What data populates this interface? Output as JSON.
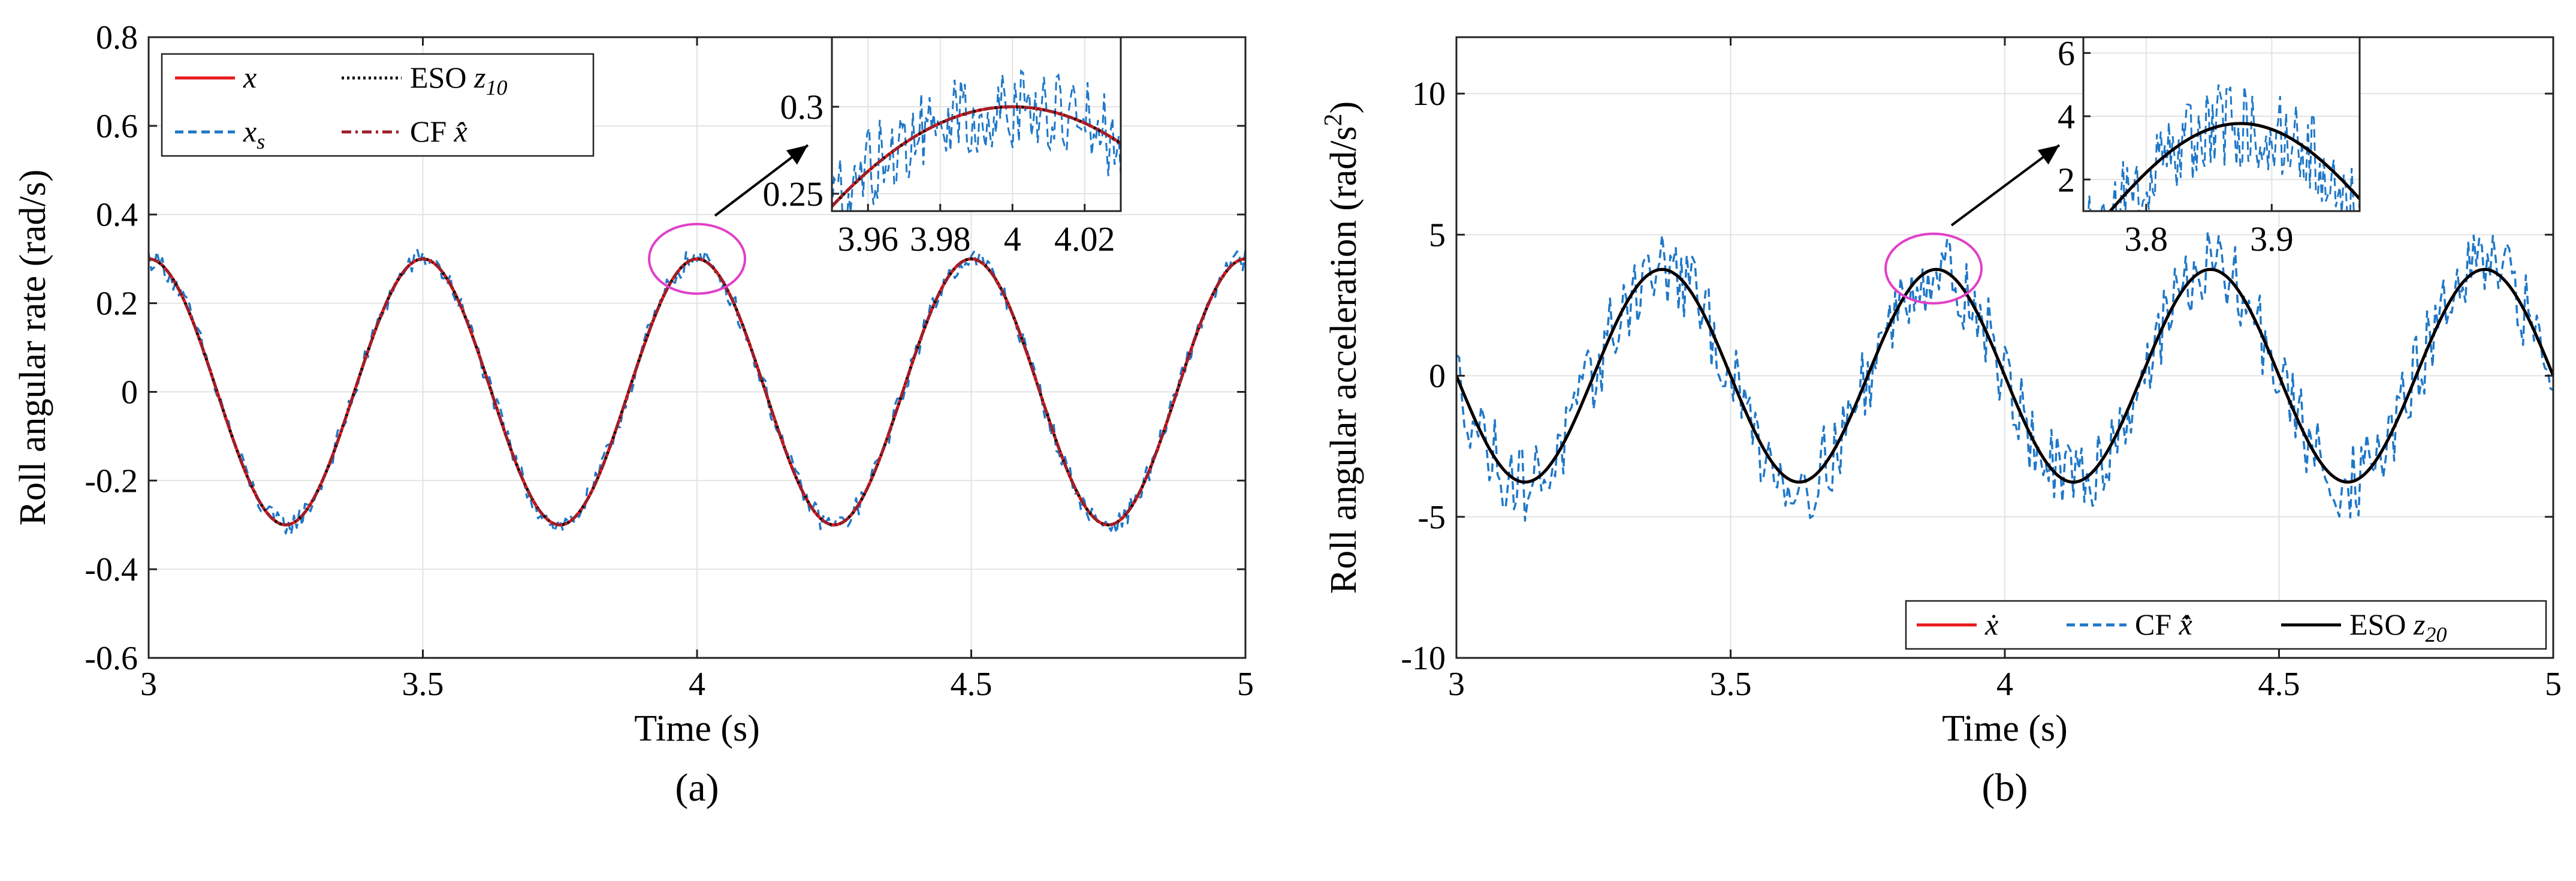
{
  "chart_data": [
    {
      "type": "line",
      "panel_label": "(a)",
      "xlabel": "Time (s)",
      "ylabel": "Roll angular rate (rad/s)",
      "xlim": [
        3,
        5
      ],
      "ylim": [
        -0.6,
        0.8
      ],
      "xticks": [
        3,
        3.5,
        4,
        4.5,
        5
      ],
      "xtick_labels": [
        "3",
        "3.5",
        "4",
        "4.5",
        "5"
      ],
      "yticks": [
        -0.6,
        -0.4,
        -0.2,
        0,
        0.2,
        0.4,
        0.6,
        0.8
      ],
      "ytick_labels": [
        "-0.6",
        "-0.4",
        "-0.2",
        "0",
        "0.2",
        "0.4",
        "0.6",
        "0.8"
      ],
      "grid": true,
      "legend_location": "top-left",
      "signal": {
        "amplitude": 0.3,
        "frequency_hz": 2,
        "peak_time": 3.5,
        "samples": 401
      },
      "series": [
        {
          "name": "x",
          "label_main": "x",
          "label_sub": "",
          "label_prefix": "",
          "color": "#e8191c",
          "style": "solid",
          "noise": 0
        },
        {
          "name": "xs",
          "label_main": "x",
          "label_sub": "s",
          "label_prefix": "",
          "color": "#1f78c8",
          "style": "dashed",
          "noise": 0.025
        },
        {
          "name": "ESO z10",
          "label_main": "z",
          "label_sub": "10",
          "label_prefix": "ESO",
          "color": "#111111",
          "style": "dotted",
          "noise": 0
        },
        {
          "name": "CF x-hat",
          "label_main": "x̂",
          "label_sub": "",
          "label_prefix": "CF",
          "color": "#9e1f2a",
          "style": "dashdot",
          "noise": 0
        }
      ],
      "highlight": {
        "x": 4.0,
        "y": 0.3,
        "color": "#e040c8"
      },
      "inset": {
        "xlim": [
          3.95,
          4.03
        ],
        "ylim": [
          0.24,
          0.34
        ],
        "xticks": [
          3.96,
          3.98,
          4,
          4.02
        ],
        "xtick_labels": [
          "3.96",
          "3.98",
          "4",
          "4.02"
        ],
        "yticks": [
          0.25,
          0.3
        ],
        "ytick_labels": [
          "0.25",
          "0.3"
        ]
      }
    },
    {
      "type": "line",
      "panel_label": "(b)",
      "xlabel": "Time (s)",
      "ylabel": "Roll angular acceleration (rad/s",
      "ylabel_sup": "2",
      "ylabel_end": ")",
      "xlim": [
        3,
        5
      ],
      "ylim": [
        -10,
        12
      ],
      "xticks": [
        3,
        3.5,
        4,
        4.5,
        5
      ],
      "xtick_labels": [
        "3",
        "3.5",
        "4",
        "4.5",
        "5"
      ],
      "yticks": [
        -10,
        -5,
        0,
        5,
        10
      ],
      "ytick_labels": [
        "-10",
        "-5",
        "0",
        "5",
        "10"
      ],
      "grid": true,
      "legend_location": "bottom-right",
      "signal": {
        "amplitude": 3.77,
        "frequency_hz": 2,
        "peak_time": 3.375,
        "samples": 401
      },
      "series": [
        {
          "name": "x-dot",
          "label_main": "ẋ",
          "label_sub": "",
          "label_prefix": "",
          "color": "#e8191c",
          "style": "solid",
          "noise": 0
        },
        {
          "name": "CF x-hat-dot",
          "label_main": "x̂̇",
          "label_sub": "",
          "label_prefix": "CF",
          "color": "#1f78c8",
          "style": "dashed",
          "noise": 1.4
        },
        {
          "name": "ESO z20",
          "label_main": "z",
          "label_sub": "20",
          "label_prefix": "ESO",
          "color": "#000000",
          "style": "solid",
          "noise": 0
        }
      ],
      "highlight": {
        "x": 3.87,
        "y": 3.8,
        "color": "#e040c8"
      },
      "inset": {
        "xlim": [
          3.75,
          3.97
        ],
        "ylim": [
          1,
          6.5
        ],
        "xticks": [
          3.8,
          3.9
        ],
        "xtick_labels": [
          "3.8",
          "3.9"
        ],
        "yticks": [
          2,
          4,
          6
        ],
        "ytick_labels": [
          "2",
          "4",
          "6"
        ]
      }
    }
  ]
}
